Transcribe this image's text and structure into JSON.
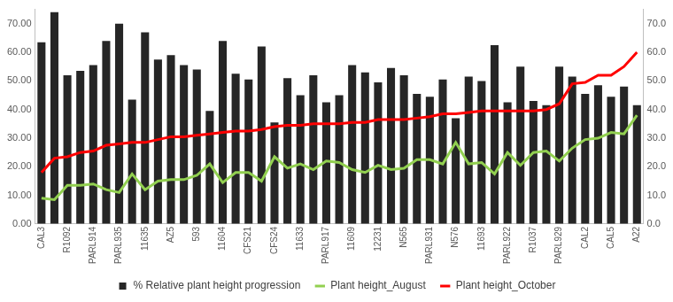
{
  "chart_data": {
    "type": "bar",
    "categories": [
      "CAL3",
      null,
      "R1092",
      null,
      "PARL914",
      null,
      "PARL935",
      null,
      "11635",
      null,
      "AZ5",
      null,
      "593",
      null,
      "11604",
      null,
      "CFS21",
      null,
      "CFS24",
      null,
      "11633",
      null,
      "PARL917",
      null,
      "11609",
      null,
      "12231",
      null,
      "N565",
      null,
      "PARL931",
      null,
      "N576",
      null,
      "11693",
      null,
      "PARL922",
      null,
      "R1037",
      null,
      "PARL929",
      null,
      "CAL2",
      null,
      "CAL5",
      null,
      "A22"
    ],
    "series": [
      {
        "name": "% Relative plant height progression",
        "type": "bar",
        "color": "#262626",
        "values": [
          63.5,
          74,
          52,
          53.5,
          55.5,
          64,
          70,
          43.5,
          67,
          57.5,
          59,
          55.5,
          54,
          39.5,
          64,
          52.5,
          50.5,
          62,
          35.5,
          51,
          45,
          52,
          42.5,
          45,
          55.5,
          53,
          49.5,
          54.5,
          52,
          45.5,
          44.5,
          50.5,
          37,
          51.5,
          50,
          62.5,
          42.5,
          55,
          43,
          41.5,
          55,
          51.5,
          45.5,
          48.5,
          44.5,
          48,
          41.5
        ]
      },
      {
        "name": "Plant height_August",
        "type": "line",
        "axis": "y2",
        "color": "#92d050",
        "values": [
          9,
          8.5,
          13.5,
          13.5,
          14,
          12,
          11,
          17.5,
          12,
          15,
          15.5,
          15.5,
          17,
          21,
          14.5,
          18,
          18,
          15,
          23.5,
          19.5,
          21,
          19,
          22,
          21.5,
          19,
          18,
          20.5,
          19,
          19.5,
          22.5,
          22.5,
          21,
          28.5,
          21,
          21.5,
          17.5,
          25,
          20.5,
          25,
          25.5,
          22,
          26.5,
          29.5,
          30,
          32,
          31.5,
          38
        ]
      },
      {
        "name": "Plant height_October",
        "type": "line",
        "axis": "y2",
        "color": "#ff0000",
        "values": [
          18,
          23,
          23.5,
          25,
          25.5,
          27.5,
          28,
          28.5,
          28.5,
          29.5,
          30.5,
          30.5,
          31,
          31.5,
          32,
          32.5,
          32.5,
          33,
          34,
          34.5,
          34.5,
          35,
          35,
          35,
          35.5,
          35.5,
          36.5,
          36.5,
          36.5,
          37,
          37.5,
          38.5,
          38.5,
          39,
          39.5,
          39.5,
          39.5,
          39.5,
          39.5,
          40,
          42,
          49,
          49.5,
          52,
          52,
          55,
          60
        ]
      }
    ],
    "ylim": [
      0,
      75
    ],
    "yticks": [
      {
        "value": 0,
        "label": "0.00"
      },
      {
        "value": 10,
        "label": "10.00"
      },
      {
        "value": 20,
        "label": "20.00"
      },
      {
        "value": 30,
        "label": "30.00"
      },
      {
        "value": 40,
        "label": "40.00"
      },
      {
        "value": 50,
        "label": "50.00"
      },
      {
        "value": 60,
        "label": "60.00"
      },
      {
        "value": 70,
        "label": "70.00"
      }
    ],
    "y2lim": [
      0,
      75
    ],
    "y2ticks": [
      {
        "value": 0,
        "label": "0.0"
      },
      {
        "value": 10,
        "label": "10.0"
      },
      {
        "value": 20,
        "label": "20.0"
      },
      {
        "value": 30,
        "label": "30.0"
      },
      {
        "value": 40,
        "label": "40.0"
      },
      {
        "value": 50,
        "label": "50.0"
      },
      {
        "value": 60,
        "label": "60.0"
      },
      {
        "value": 70,
        "label": "70.0"
      }
    ],
    "grid": false,
    "legend": "bottom"
  }
}
